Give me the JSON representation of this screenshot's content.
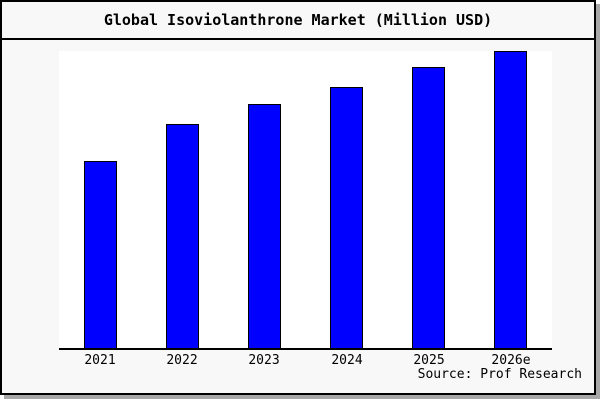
{
  "title": "Global Isoviolanthrone Market (Million USD)",
  "source_note": "Source: Prof Research",
  "colors": {
    "bar_fill": "#0000ff",
    "bar_edge": "#000000",
    "plot_background": "#ffffff",
    "canvas_background": "#f8f8f8",
    "frame_border": "#000000",
    "shadow": "#a8a8a8",
    "text": "#000000"
  },
  "chart_data": {
    "type": "bar",
    "title": "Global Isoviolanthrone Market (Million USD)",
    "categories": [
      "2021",
      "2022",
      "2023",
      "2024",
      "2025",
      "2026e"
    ],
    "values": [
      63,
      75.5,
      82,
      88,
      94.5,
      100
    ],
    "value_scale": "relative bar height (no y-axis labels shown; tallest bar 2026e = 100)",
    "xlabel": "",
    "ylabel": "",
    "ylim": [
      0,
      100
    ],
    "grid": false,
    "legend": false,
    "axes_shown": [
      "bottom"
    ],
    "annotation": "Source: Prof Research"
  }
}
